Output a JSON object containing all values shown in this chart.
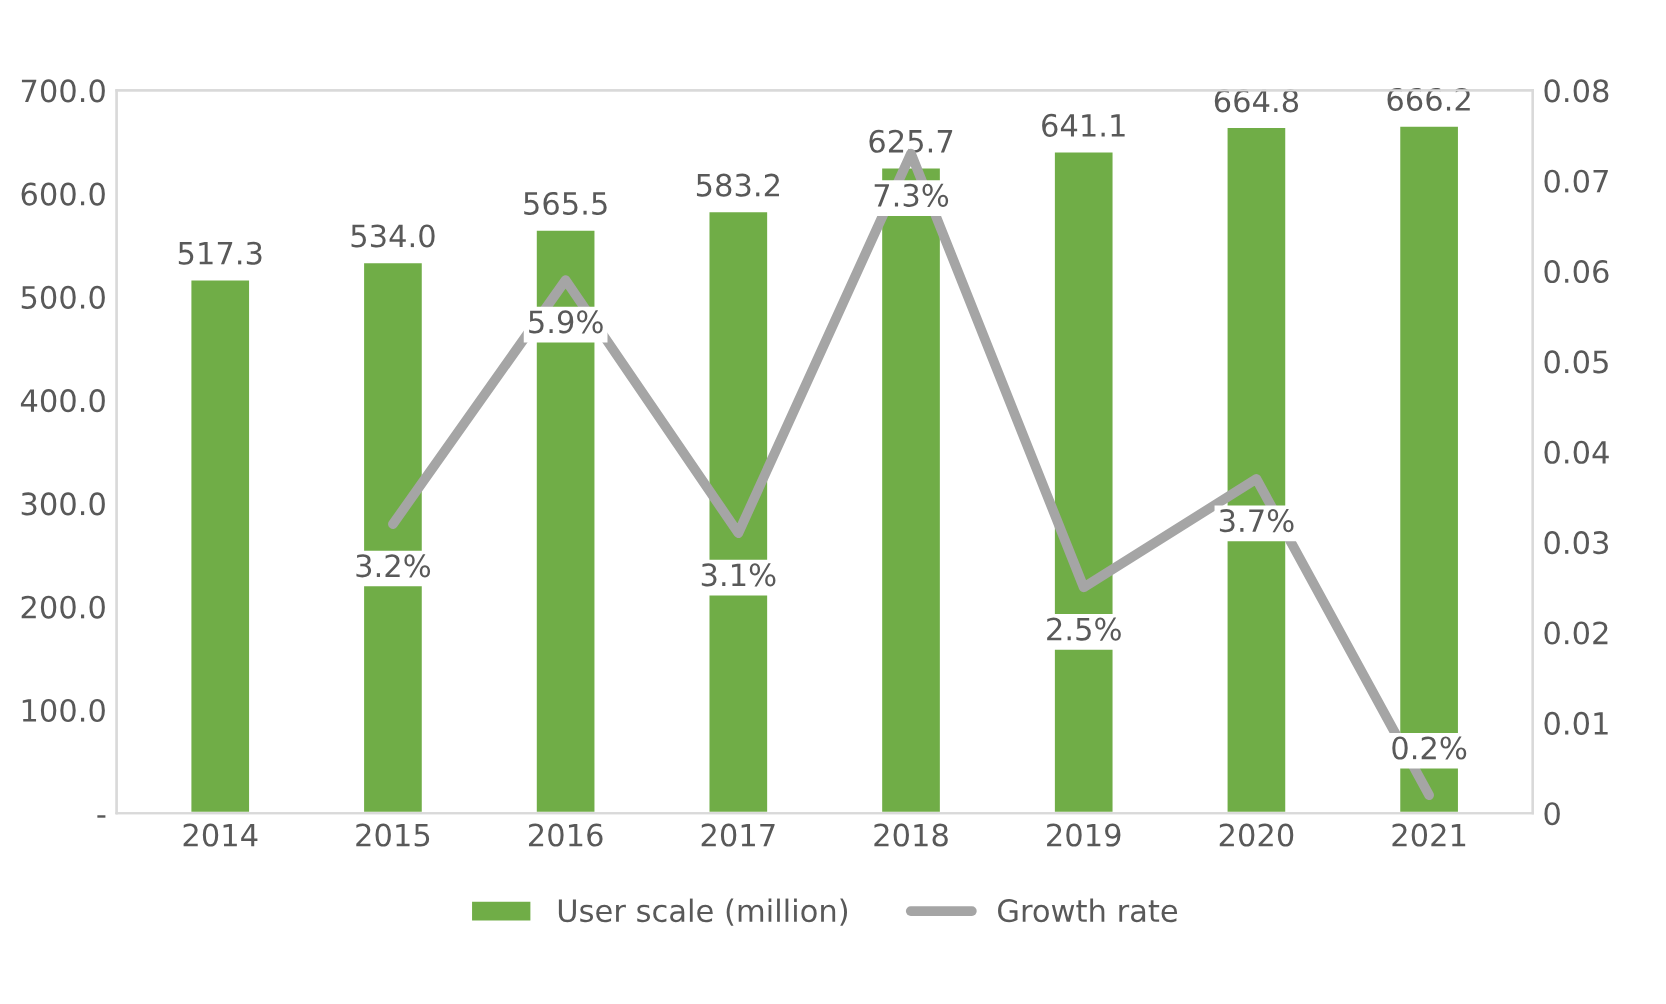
{
  "chart_data": {
    "type": "bar",
    "categories": [
      "2014",
      "2015",
      "2016",
      "2017",
      "2018",
      "2019",
      "2020",
      "2021"
    ],
    "series": [
      {
        "name": "User scale (million)",
        "color": "#70ad47",
        "values": [
          517.3,
          534.0,
          565.5,
          583.2,
          625.7,
          641.1,
          664.8,
          666.2
        ],
        "value_labels": [
          "517.3",
          "534.0",
          "565.5",
          "583.2",
          "625.7",
          "641.1",
          "664.8",
          "666.2"
        ]
      },
      {
        "name": "Growth rate",
        "type": "line",
        "axis": "y2",
        "color": "#a5a5a5",
        "values": [
          null,
          0.032,
          0.059,
          0.031,
          0.073,
          0.025,
          0.037,
          0.002
        ],
        "value_labels": [
          null,
          "3.2%",
          "5.9%",
          "3.1%",
          "7.3%",
          "2.5%",
          "3.7%",
          "0.2%"
        ]
      }
    ],
    "ylim": [
      0,
      700
    ],
    "yticks": [
      {
        "value": 0,
        "label": "-"
      },
      {
        "value": 100,
        "label": "100.0"
      },
      {
        "value": 200,
        "label": "200.0"
      },
      {
        "value": 300,
        "label": "300.0"
      },
      {
        "value": 400,
        "label": "400.0"
      },
      {
        "value": 500,
        "label": "500.0"
      },
      {
        "value": 600,
        "label": "600.0"
      },
      {
        "value": 700,
        "label": "700.0"
      }
    ],
    "y2lim": [
      0,
      0.08
    ],
    "y2ticks": [
      0,
      0.01,
      0.02,
      0.03,
      0.04,
      0.05,
      0.06,
      0.07,
      0.08
    ],
    "legend": "bottom",
    "marker": "none",
    "line_style": "solid",
    "grid": false
  }
}
